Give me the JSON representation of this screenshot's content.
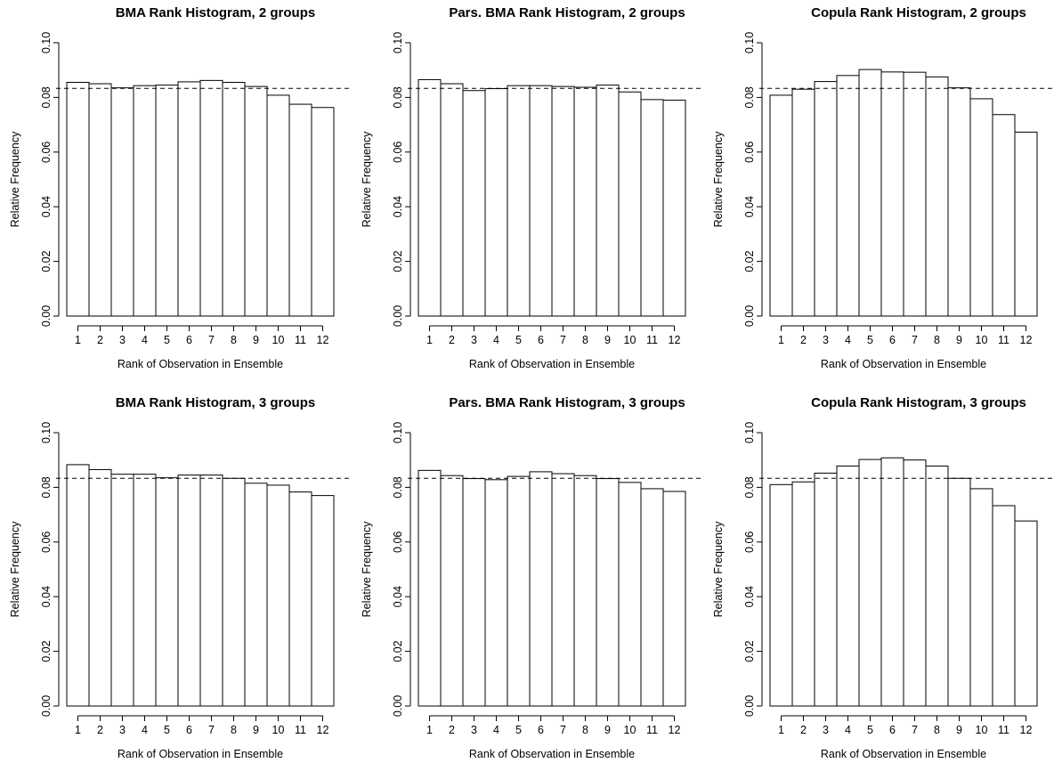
{
  "chart_data": [
    {
      "type": "bar",
      "title": "BMA Rank Histogram, 2 groups",
      "xlabel": "Rank of Observation in Ensemble",
      "ylabel": "Relative Frequency",
      "categories": [
        "1",
        "2",
        "3",
        "4",
        "5",
        "6",
        "7",
        "8",
        "9",
        "10",
        "11",
        "12"
      ],
      "values": [
        0.0855,
        0.085,
        0.0835,
        0.0843,
        0.0845,
        0.0857,
        0.0862,
        0.0855,
        0.084,
        0.0808,
        0.0775,
        0.0763
      ],
      "reference_line": 0.0833,
      "ylim": [
        0,
        0.1
      ],
      "yticks": [
        "0.00",
        "0.02",
        "0.04",
        "0.06",
        "0.08",
        "0.10"
      ]
    },
    {
      "type": "bar",
      "title": "Pars. BMA Rank Histogram, 2 groups",
      "xlabel": "Rank of Observation in Ensemble",
      "ylabel": "Relative Frequency",
      "categories": [
        "1",
        "2",
        "3",
        "4",
        "5",
        "6",
        "7",
        "8",
        "9",
        "10",
        "11",
        "12"
      ],
      "values": [
        0.0865,
        0.085,
        0.0825,
        0.0832,
        0.0843,
        0.0843,
        0.084,
        0.0837,
        0.0845,
        0.082,
        0.0792,
        0.079
      ],
      "reference_line": 0.0833,
      "ylim": [
        0,
        0.1
      ],
      "yticks": [
        "0.00",
        "0.02",
        "0.04",
        "0.06",
        "0.08",
        "0.10"
      ]
    },
    {
      "type": "bar",
      "title": "Copula Rank Histogram, 2 groups",
      "xlabel": "Rank of Observation in Ensemble",
      "ylabel": "Relative Frequency",
      "categories": [
        "1",
        "2",
        "3",
        "4",
        "5",
        "6",
        "7",
        "8",
        "9",
        "10",
        "11",
        "12"
      ],
      "values": [
        0.0808,
        0.083,
        0.0858,
        0.088,
        0.0902,
        0.0893,
        0.0892,
        0.0875,
        0.0835,
        0.0795,
        0.0737,
        0.0673
      ],
      "reference_line": 0.0833,
      "ylim": [
        0,
        0.1
      ],
      "yticks": [
        "0.00",
        "0.02",
        "0.04",
        "0.06",
        "0.08",
        "0.10"
      ]
    },
    {
      "type": "bar",
      "title": "BMA Rank Histogram, 3 groups",
      "xlabel": "Rank of Observation in Ensemble",
      "ylabel": "Relative Frequency",
      "categories": [
        "1",
        "2",
        "3",
        "4",
        "5",
        "6",
        "7",
        "8",
        "9",
        "10",
        "11",
        "12"
      ],
      "values": [
        0.0883,
        0.0865,
        0.0848,
        0.0848,
        0.0835,
        0.0845,
        0.0845,
        0.0833,
        0.0815,
        0.0808,
        0.0783,
        0.077
      ],
      "reference_line": 0.0833,
      "ylim": [
        0,
        0.1
      ],
      "yticks": [
        "0.00",
        "0.02",
        "0.04",
        "0.06",
        "0.08",
        "0.10"
      ]
    },
    {
      "type": "bar",
      "title": "Pars. BMA Rank Histogram, 3 groups",
      "xlabel": "Rank of Observation in Ensemble",
      "ylabel": "Relative Frequency",
      "categories": [
        "1",
        "2",
        "3",
        "4",
        "5",
        "6",
        "7",
        "8",
        "9",
        "10",
        "11",
        "12"
      ],
      "values": [
        0.0862,
        0.0843,
        0.0832,
        0.0828,
        0.084,
        0.0857,
        0.085,
        0.0843,
        0.0832,
        0.0818,
        0.0795,
        0.0785
      ],
      "reference_line": 0.0833,
      "ylim": [
        0,
        0.1
      ],
      "yticks": [
        "0.00",
        "0.02",
        "0.04",
        "0.06",
        "0.08",
        "0.10"
      ]
    },
    {
      "type": "bar",
      "title": "Copula Rank Histogram, 3 groups",
      "xlabel": "Rank of Observation in Ensemble",
      "ylabel": "Relative Frequency",
      "categories": [
        "1",
        "2",
        "3",
        "4",
        "5",
        "6",
        "7",
        "8",
        "9",
        "10",
        "11",
        "12"
      ],
      "values": [
        0.081,
        0.082,
        0.0852,
        0.0878,
        0.0902,
        0.0908,
        0.09,
        0.0878,
        0.0833,
        0.0795,
        0.0733,
        0.0677
      ],
      "reference_line": 0.0833,
      "ylim": [
        0,
        0.1
      ],
      "yticks": [
        "0.00",
        "0.02",
        "0.04",
        "0.06",
        "0.08",
        "0.10"
      ]
    }
  ]
}
